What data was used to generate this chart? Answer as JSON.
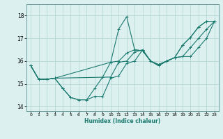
{
  "title": "",
  "xlabel": "Humidex (Indice chaleur)",
  "ylabel": "",
  "bg_color": "#ddf0f0",
  "line_color": "#1a7a6e",
  "grid_color": "#b8d8d8",
  "xlim": [
    -0.5,
    23.5
  ],
  "ylim": [
    13.8,
    18.5
  ],
  "yticks": [
    14,
    15,
    16,
    17,
    18
  ],
  "xticks": [
    0,
    1,
    2,
    3,
    4,
    5,
    6,
    7,
    8,
    9,
    10,
    11,
    12,
    13,
    14,
    15,
    16,
    17,
    18,
    19,
    20,
    21,
    22,
    23
  ],
  "lines": [
    {
      "x": [
        0,
        1,
        2,
        3,
        4,
        5,
        6,
        7,
        8,
        9,
        10,
        11,
        12,
        13,
        14,
        15,
        16,
        17,
        18,
        19,
        20,
        21,
        22,
        23
      ],
      "y": [
        15.8,
        15.2,
        15.2,
        15.25,
        14.8,
        14.4,
        14.3,
        14.3,
        14.45,
        14.45,
        15.25,
        15.35,
        15.9,
        16.0,
        16.5,
        16.0,
        15.8,
        16.0,
        16.15,
        16.2,
        16.2,
        16.6,
        17.0,
        17.75
      ]
    },
    {
      "x": [
        0,
        1,
        2,
        3,
        4,
        5,
        6,
        7,
        8,
        9,
        10,
        11,
        12,
        13,
        14,
        15,
        16,
        17,
        18,
        19,
        20,
        21,
        22,
        23
      ],
      "y": [
        15.8,
        15.2,
        15.2,
        15.25,
        14.8,
        14.4,
        14.3,
        14.3,
        14.8,
        15.3,
        15.95,
        17.4,
        17.95,
        16.5,
        16.45,
        16.0,
        15.85,
        16.0,
        16.15,
        16.7,
        17.05,
        17.5,
        17.75,
        17.75
      ]
    },
    {
      "x": [
        0,
        1,
        2,
        3,
        10,
        11,
        12,
        13,
        14,
        15,
        16,
        17,
        18,
        19,
        20,
        21,
        22,
        23
      ],
      "y": [
        15.8,
        15.2,
        15.2,
        15.25,
        15.95,
        16.0,
        16.35,
        16.5,
        16.45,
        16.0,
        15.85,
        16.0,
        16.15,
        16.7,
        17.05,
        17.5,
        17.75,
        17.75
      ]
    },
    {
      "x": [
        0,
        1,
        2,
        3,
        10,
        11,
        12,
        13,
        14,
        15,
        16,
        17,
        18,
        19,
        20,
        21,
        22,
        23
      ],
      "y": [
        15.8,
        15.2,
        15.2,
        15.25,
        15.3,
        15.95,
        16.0,
        16.4,
        16.5,
        16.0,
        15.8,
        16.0,
        16.15,
        16.2,
        16.6,
        17.0,
        17.4,
        17.75
      ]
    }
  ]
}
